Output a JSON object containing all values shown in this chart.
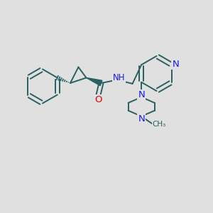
{
  "bg_color": "#e0e0e0",
  "bond_color": "#2a6060",
  "bond_width": 1.4,
  "atom_colors": {
    "N": "#1a1aee",
    "O": "#dd0000",
    "C": "#2a6060"
  },
  "font_size": 8.5,
  "xlim": [
    0,
    10
  ],
  "ylim": [
    0,
    10
  ]
}
